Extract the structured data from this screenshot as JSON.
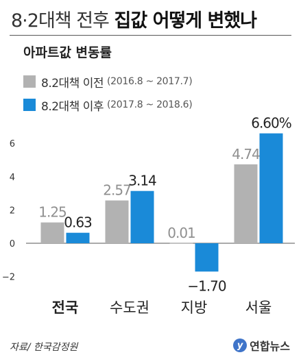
{
  "header": {
    "title_light": "8·2대책 전후",
    "title_bold": "집값 어떻게 변했나",
    "subtitle": "아파트값 변동률"
  },
  "legend": [
    {
      "label": "8.2대책 이전",
      "period": "(2016.8 ~ 2017.7)",
      "color": "#b2b2b2"
    },
    {
      "label": "8.2대책 이후",
      "period": "(2017.8 ~ 2018.6)",
      "color": "#1a8ad8"
    }
  ],
  "chart_data": {
    "type": "bar",
    "categories": [
      "전국",
      "수도권",
      "지방",
      "서울"
    ],
    "series": [
      {
        "name": "8.2대책 이전 (2016.8 ~ 2017.7)",
        "values": [
          1.25,
          2.57,
          0.01,
          4.74
        ],
        "labels": [
          "1.25",
          "2.57",
          "0.01",
          "4.74"
        ],
        "color": "#b2b2b2"
      },
      {
        "name": "8.2대책 이후 (2017.8 ~ 2018.6)",
        "values": [
          0.63,
          3.14,
          -1.7,
          6.6
        ],
        "labels": [
          "0.63",
          "3.14",
          "−1.70",
          "6.60%"
        ],
        "color": "#1a8ad8"
      }
    ],
    "yticks": [
      6,
      4,
      2,
      0,
      -2
    ],
    "ytick_labels": [
      "6",
      "4",
      "2",
      "0",
      "−2"
    ],
    "ylim": [
      -2.4,
      6.8
    ],
    "grid": false,
    "bold_category_index": 0,
    "legend_position": "top-left"
  },
  "footer": {
    "source": "자료/ 한국감정원",
    "logo_text": "연합뉴스",
    "logo_mark": "y"
  }
}
